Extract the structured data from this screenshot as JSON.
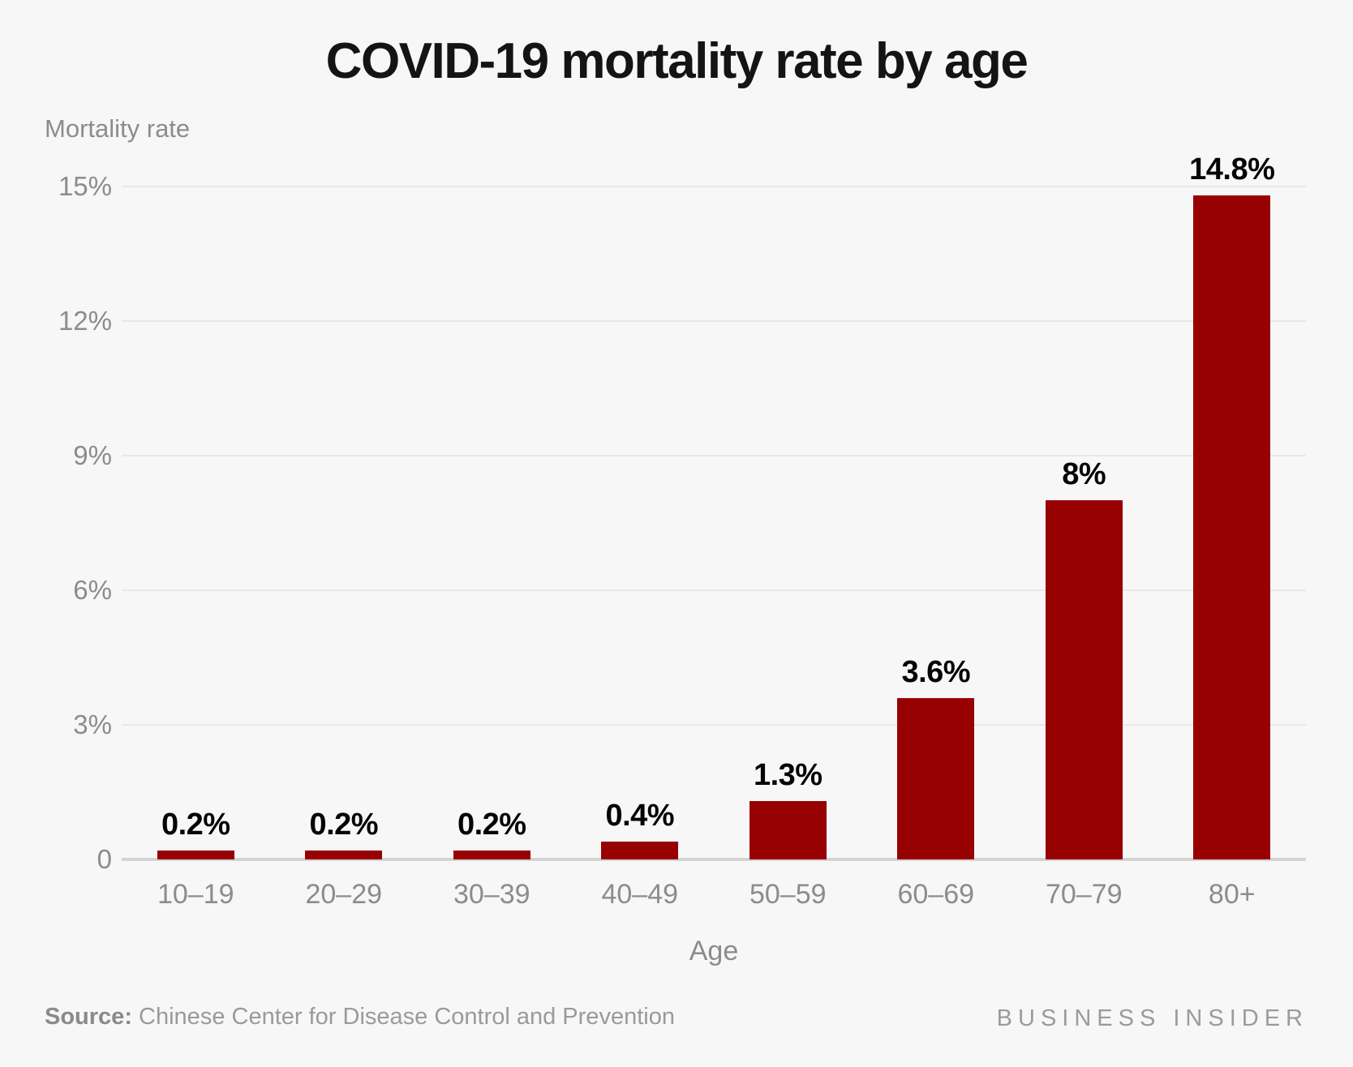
{
  "header": {
    "title": "COVID-19 mortality rate by age"
  },
  "chart_data": {
    "type": "bar",
    "title": "COVID-19 mortality rate by age",
    "xlabel": "Age",
    "ylabel": "Mortality rate",
    "categories": [
      "10–19",
      "20–29",
      "30–39",
      "40–49",
      "50–59",
      "60–69",
      "70–79",
      "80+"
    ],
    "values": [
      0.2,
      0.2,
      0.2,
      0.4,
      1.3,
      3.6,
      8,
      14.8
    ],
    "bar_labels": [
      "0.2%",
      "0.2%",
      "0.2%",
      "0.4%",
      "1.3%",
      "3.6%",
      "8%",
      "14.8%"
    ],
    "ylim": [
      0,
      15
    ],
    "yticks": [
      {
        "value": 0,
        "label": "0"
      },
      {
        "value": 3,
        "label": "3%"
      },
      {
        "value": 6,
        "label": "6%"
      },
      {
        "value": 9,
        "label": "9%"
      },
      {
        "value": 12,
        "label": "12%"
      },
      {
        "value": 15,
        "label": "15%"
      }
    ],
    "grid": true,
    "legend_position": "none",
    "bar_color": "#970101"
  },
  "footer": {
    "source_label": "Source:",
    "source_text": " Chinese Center for Disease Control and Prevention",
    "brand": "BUSINESS INSIDER"
  },
  "colors": {
    "background": "#f7f7f7",
    "bar": "#970101",
    "gridline": "#e8e8e8",
    "baseline": "#d4d4d4",
    "axis_text": "#8c8c8c",
    "title_text": "#141414",
    "bar_label_text": "#050505",
    "source_text": "#9a9a9a",
    "brand_text": "#9b9b9b"
  }
}
